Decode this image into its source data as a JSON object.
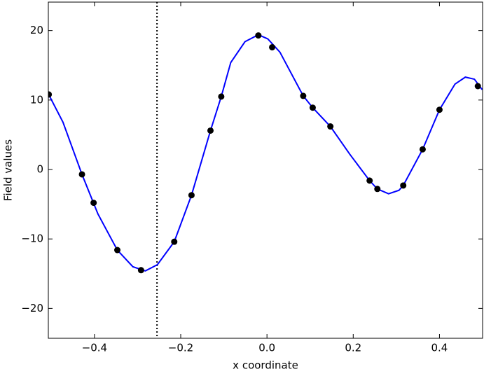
{
  "chart_data": {
    "type": "line",
    "xlabel": "x coordinate",
    "ylabel": "Field values",
    "xlim": [
      -0.507,
      0.5
    ],
    "ylim": [
      -24.3,
      24.1
    ],
    "xticks": [
      {
        "value": -0.4,
        "label": "−0.4"
      },
      {
        "value": -0.2,
        "label": "−0.2"
      },
      {
        "value": 0,
        "label": "0.0"
      },
      {
        "value": 0.2,
        "label": "0.2"
      },
      {
        "value": 0.4,
        "label": "0.4"
      }
    ],
    "yticks": [
      {
        "value": -20,
        "label": "−20"
      },
      {
        "value": -10,
        "label": "−10"
      },
      0,
      10,
      20
    ],
    "vline": {
      "x": -0.255,
      "color": "#000000",
      "style": "dotted"
    },
    "series": [
      {
        "type": "line",
        "color": "#0000ff",
        "x": [
          -0.507,
          -0.473,
          -0.429,
          -0.392,
          -0.347,
          -0.311,
          -0.282,
          -0.254,
          -0.215,
          -0.175,
          -0.131,
          -0.106,
          -0.084,
          -0.051,
          -0.02,
          0.002,
          0.03,
          0.084,
          0.106,
          0.147,
          0.192,
          0.238,
          0.256,
          0.282,
          0.306,
          0.316,
          0.361,
          0.4,
          0.436,
          0.46,
          0.481,
          0.499
        ],
        "values": [
          10.9,
          6.8,
          -0.7,
          -6.4,
          -11.6,
          -14.0,
          -14.6,
          -13.7,
          -10.4,
          -3.7,
          5.6,
          10.5,
          15.4,
          18.4,
          19.4,
          18.8,
          16.9,
          10.6,
          8.9,
          6.2,
          2.2,
          -1.6,
          -2.8,
          -3.5,
          -3.0,
          -2.3,
          2.9,
          8.6,
          12.3,
          13.3,
          13.0,
          11.5
        ]
      },
      {
        "type": "scatter",
        "color": "#000000",
        "x": [
          -0.506,
          -0.429,
          -0.402,
          -0.347,
          -0.292,
          -0.215,
          -0.175,
          -0.131,
          -0.106,
          -0.02,
          0.012,
          0.084,
          0.106,
          0.147,
          0.238,
          0.256,
          0.316,
          0.361,
          0.4,
          0.489
        ],
        "values": [
          10.8,
          -0.7,
          -4.8,
          -11.6,
          -14.5,
          -10.4,
          -3.7,
          5.6,
          10.5,
          19.3,
          17.6,
          10.6,
          8.9,
          6.2,
          -1.6,
          -2.8,
          -2.3,
          2.9,
          8.6,
          12.0
        ]
      }
    ]
  }
}
